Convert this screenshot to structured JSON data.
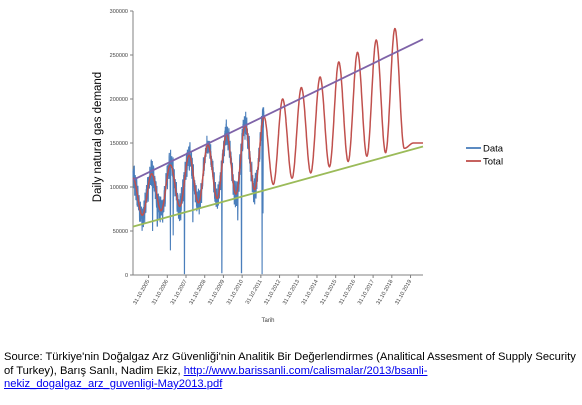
{
  "chart_data": {
    "type": "line",
    "ylabel": "Daily natural gas demand",
    "xlabel": "Tarih",
    "ylim": [
      0,
      300000
    ],
    "y_ticks": [
      "0",
      "50000",
      "100000",
      "150000",
      "200000",
      "250000",
      "300000"
    ],
    "x_ticks": [
      "31.10.2005",
      "31.10.2006",
      "31.10.2007",
      "31.10.2008",
      "31.10.2009",
      "31.10.2010",
      "31.10.2011",
      "31.10.2012",
      "31.10.2013",
      "31.10.2014",
      "31.10.2015",
      "31.10.2016",
      "31.10.2017",
      "31.10.2018",
      "31.10.2019"
    ],
    "x_range_years": [
      2005.0,
      2020.5
    ],
    "legend": {
      "position": "right"
    },
    "series": [
      {
        "name": "Data",
        "color": "#4a7ebb",
        "x_range": [
          2005.0,
          2012.0
        ]
      },
      {
        "name": "Total",
        "color": "#c0504d",
        "x_range": [
          2005.0,
          2020.5
        ]
      }
    ],
    "trend_upper": {
      "color": "#7e63a8",
      "x": [
        2005.0,
        2020.5
      ],
      "y": [
        108000,
        268000
      ]
    },
    "trend_lower": {
      "color": "#9bbb59",
      "x": [
        2005.0,
        2020.5
      ],
      "y": [
        55000,
        146000
      ]
    },
    "seasonal_peaks": [
      {
        "x": 2006.0,
        "y": 115000
      },
      {
        "x": 2007.0,
        "y": 125000
      },
      {
        "x": 2008.0,
        "y": 136000
      },
      {
        "x": 2009.0,
        "y": 148000
      },
      {
        "x": 2010.0,
        "y": 160000
      },
      {
        "x": 2011.0,
        "y": 170000
      },
      {
        "x": 2012.0,
        "y": 180000
      },
      {
        "x": 2013.0,
        "y": 200000
      },
      {
        "x": 2014.0,
        "y": 213000
      },
      {
        "x": 2015.0,
        "y": 225000
      },
      {
        "x": 2016.0,
        "y": 242000
      },
      {
        "x": 2017.0,
        "y": 253000
      },
      {
        "x": 2018.0,
        "y": 267000
      },
      {
        "x": 2019.0,
        "y": 280000
      }
    ],
    "seasonal_troughs": [
      {
        "x": 2005.5,
        "y": 68000
      },
      {
        "x": 2006.5,
        "y": 73000
      },
      {
        "x": 2007.5,
        "y": 78000
      },
      {
        "x": 2008.5,
        "y": 82000
      },
      {
        "x": 2009.5,
        "y": 87000
      },
      {
        "x": 2010.5,
        "y": 92000
      },
      {
        "x": 2011.5,
        "y": 97000
      },
      {
        "x": 2012.5,
        "y": 103000
      },
      {
        "x": 2013.5,
        "y": 110000
      },
      {
        "x": 2014.5,
        "y": 116000
      },
      {
        "x": 2015.5,
        "y": 123000
      },
      {
        "x": 2016.5,
        "y": 129000
      },
      {
        "x": 2017.5,
        "y": 135000
      },
      {
        "x": 2018.5,
        "y": 139000
      },
      {
        "x": 2019.5,
        "y": 144000
      }
    ],
    "data_dips": [
      {
        "x": 2006.05,
        "y": 50000
      },
      {
        "x": 2006.3,
        "y": 55000
      },
      {
        "x": 2007.0,
        "y": 28000
      },
      {
        "x": 2007.15,
        "y": 45000
      },
      {
        "x": 2007.75,
        "y": 1000
      },
      {
        "x": 2008.2,
        "y": 60000
      },
      {
        "x": 2009.75,
        "y": 2000
      },
      {
        "x": 2010.6,
        "y": 62000
      },
      {
        "x": 2010.8,
        "y": 2000
      },
      {
        "x": 2011.9,
        "y": 1000
      },
      {
        "x": 2011.95,
        "y": 70000
      }
    ]
  },
  "caption": {
    "prefix": "Source: Türkiye'nin Doğalgaz Arz Güvenliği'nin Analitik Bir Değerlendirmes (Analitical Assesment of Supply Security of Turkey), Barış Sanlı, Nadim Ekiz, ",
    "link": "http://www.barissanli.com/calismalar/2013/bsanli-nekiz_dogalgaz_arz_guvenligi-May2013.pdf"
  }
}
